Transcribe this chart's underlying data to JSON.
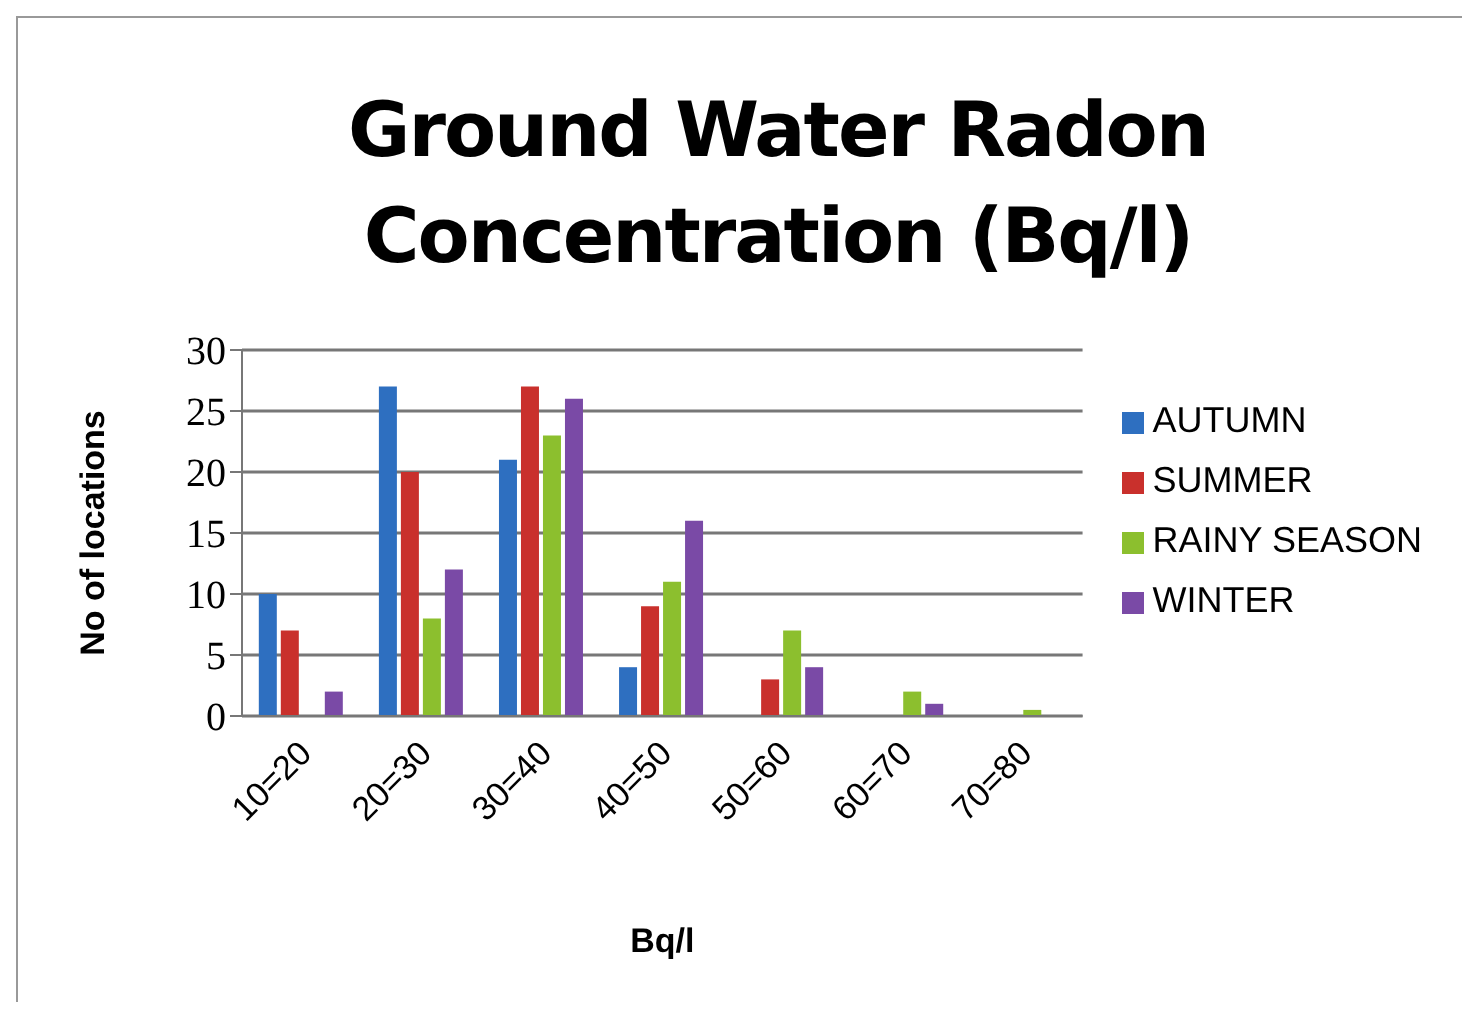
{
  "chart_data": {
    "type": "bar",
    "title": "Ground Water Radon Concentration (Bq/l)",
    "xlabel": "Bq/l",
    "ylabel": "No of  locations",
    "categories": [
      "10=20",
      "20=30",
      "30=40",
      "40=50",
      "50=60",
      "60=70",
      "70=80"
    ],
    "series": [
      {
        "name": "AUTUMN",
        "color": "#2e6fc0",
        "values": [
          10,
          27,
          21,
          4,
          0,
          0,
          0
        ]
      },
      {
        "name": "SUMMER",
        "color": "#c9302c",
        "values": [
          7,
          20,
          27,
          9,
          3,
          0,
          0
        ]
      },
      {
        "name": "RAINY SEASON",
        "color": "#8cbf2e",
        "values": [
          0,
          8,
          23,
          11,
          7,
          2,
          0.5
        ]
      },
      {
        "name": "WINTER",
        "color": "#7a4aa6",
        "values": [
          2,
          12,
          26,
          16,
          4,
          1,
          0
        ]
      }
    ],
    "ylim": [
      0,
      30
    ],
    "yticks": [
      0,
      5,
      10,
      15,
      20,
      25,
      30
    ],
    "grid": "y",
    "legend": "right"
  }
}
